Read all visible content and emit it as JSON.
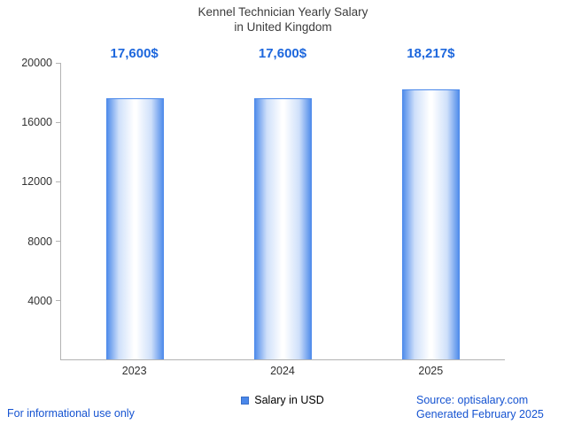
{
  "title": {
    "line1": "Kennel Technician Yearly Salary",
    "line2": "in United Kingdom"
  },
  "chart_data": {
    "type": "bar",
    "title": "Kennel Technician Yearly Salary in United Kingdom",
    "categories": [
      "2023",
      "2024",
      "2025"
    ],
    "values": [
      17600,
      17600,
      18217
    ],
    "value_labels": [
      "17,600$",
      "17,600$",
      "18,217$"
    ],
    "xlabel": "",
    "ylabel": "",
    "ylim": [
      0,
      20000
    ],
    "yticks": [
      4000,
      8000,
      12000,
      16000,
      20000
    ],
    "grid": false,
    "legend_position": "bottom",
    "legend": "Salary in USD"
  },
  "legend": {
    "label": "Salary in USD"
  },
  "footer": {
    "left": "For informational use only",
    "source": "Source: optisalary.com",
    "generated": "Generated February 2025"
  },
  "colors": {
    "accent_blue": "#1d67dd",
    "bar_edge": "#4a88ea",
    "bar_center": "#ffffff",
    "footer_blue": "#1553d1",
    "axis": "#b3b3b3",
    "title_text": "#3c3c3c"
  }
}
